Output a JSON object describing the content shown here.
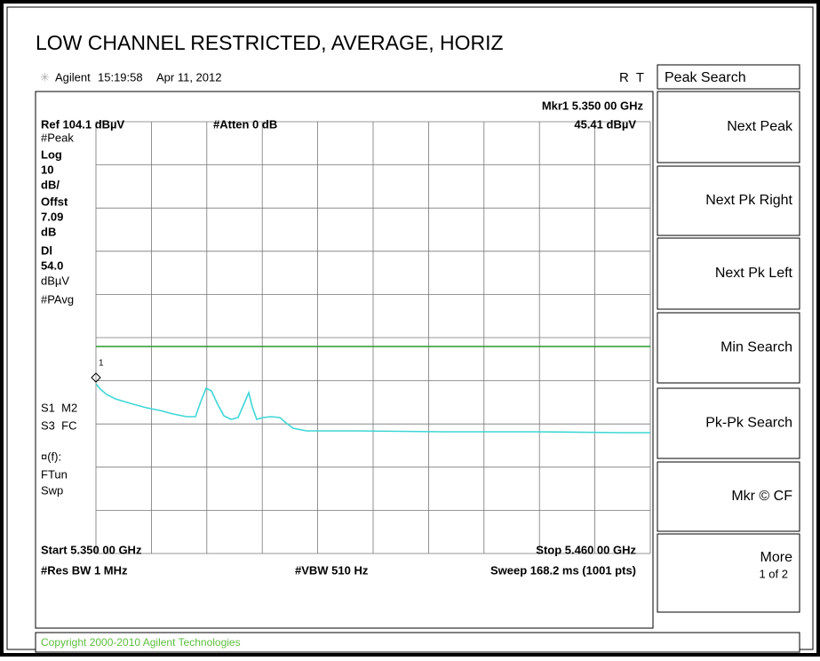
{
  "title": "LOW CHANNEL RESTRICTED, AVERAGE, HORIZ",
  "header": {
    "brand": "Agilent",
    "time": "15:19:58",
    "date": "Apr 11, 2012",
    "flags": "R  T"
  },
  "top": {
    "marker": "Mkr1 5.350 00 GHz",
    "ref": "Ref 104.1 dBµV",
    "atten": "#Atten 0 dB",
    "marker_level": "45.41 dBµV"
  },
  "left_labels": [
    "#Peak",
    "Log",
    "10",
    "dB/",
    "Offst",
    "7.09",
    "dB",
    "Dl",
    "54.0",
    "dBµV",
    "#PAvg",
    "S1  M2",
    "S3  FC",
    "¤(f):",
    "FTun",
    "Swp"
  ],
  "marker_label": "1",
  "bottom": {
    "start": "Start 5.350 00 GHz",
    "stop": "Stop 5.460 00 GHz",
    "rbw": "#Res BW 1 MHz",
    "vbw": "#VBW 510 Hz",
    "sweep": "Sweep 168.2 ms (1001 pts)"
  },
  "menu": {
    "title": "Peak Search",
    "keys": [
      "Next Peak",
      "Next Pk Right",
      "Next Pk Left",
      "Min Search",
      "Pk-Pk Search",
      "Mkr © CF"
    ],
    "more": "More",
    "more_page": "1 of 2"
  },
  "status": "Copyright 2000-2010 Agilent Technologies"
}
